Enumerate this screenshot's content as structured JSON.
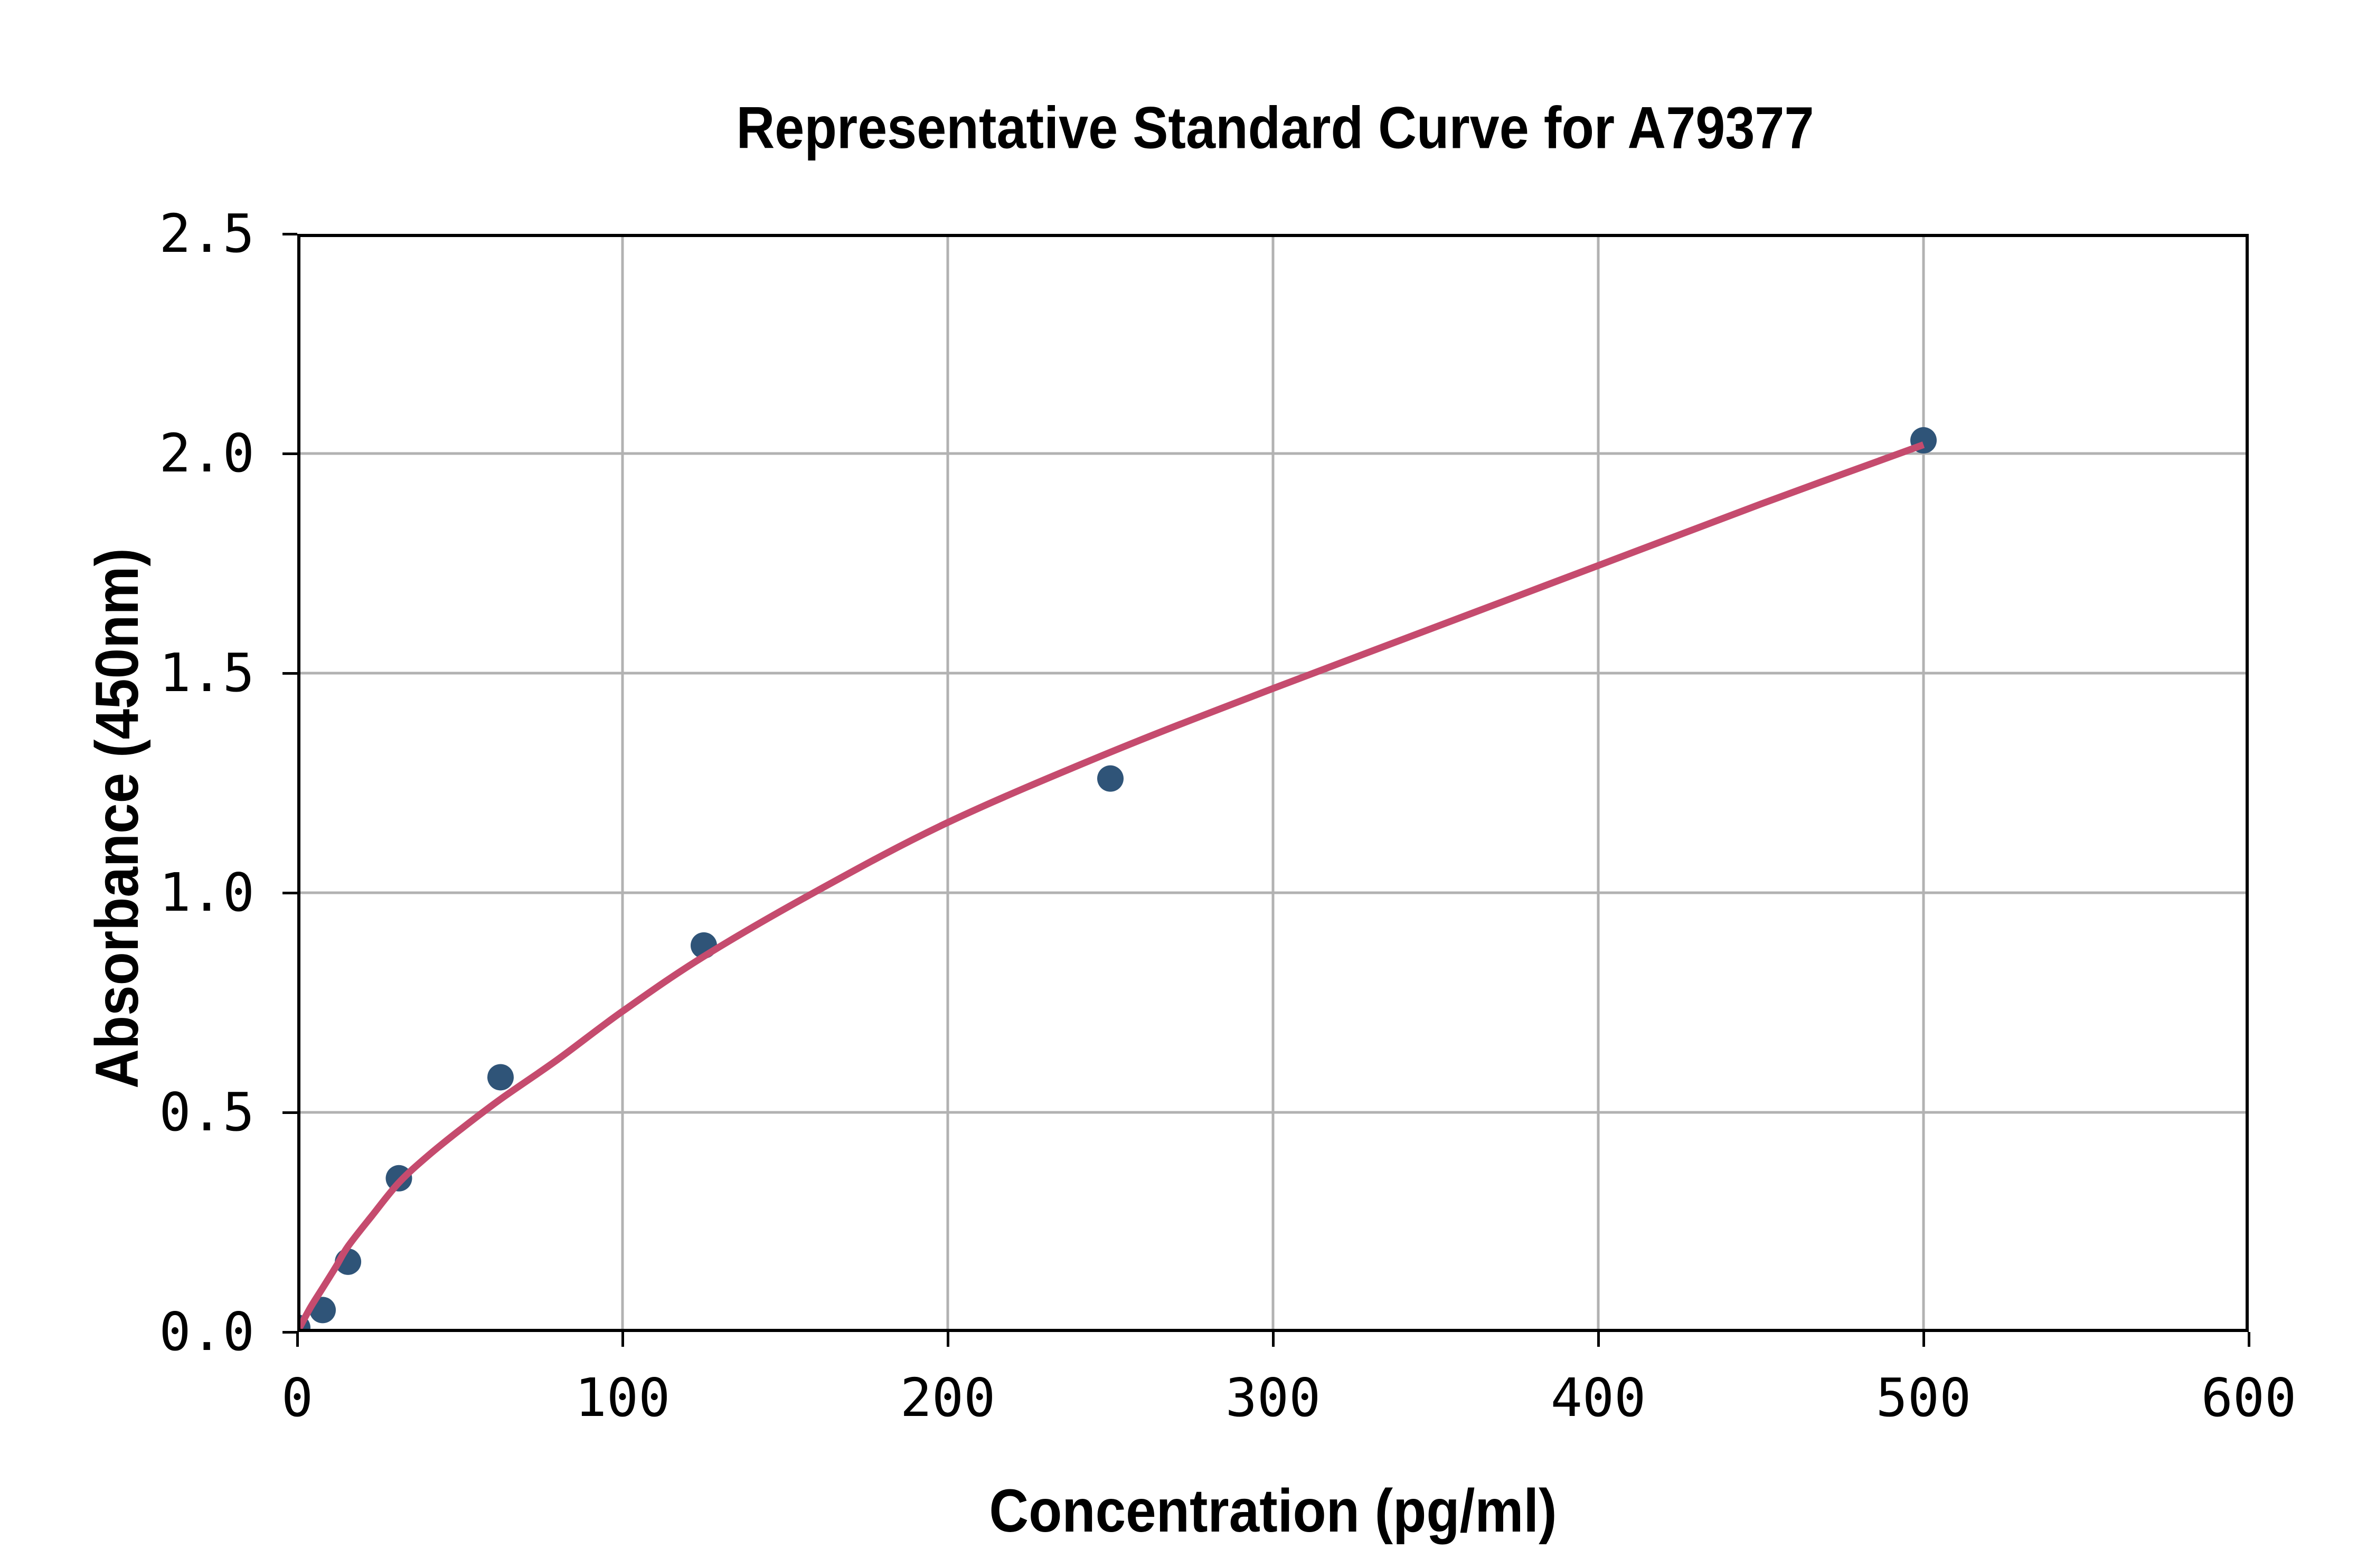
{
  "chart_data": {
    "type": "scatter",
    "title": "Representative Standard Curve for A79377",
    "xlabel": "Concentration (pg/ml)",
    "ylabel": "Absorbance (450nm)",
    "xlim": [
      0,
      600
    ],
    "ylim": [
      0,
      2.5
    ],
    "x_ticks": [
      0,
      100,
      200,
      300,
      400,
      500,
      600
    ],
    "x_tick_labels": [
      "0",
      "100",
      "200",
      "300",
      "400",
      "500",
      "600"
    ],
    "y_ticks": [
      0,
      0.5,
      1.0,
      1.5,
      2.0,
      2.5
    ],
    "y_tick_labels": [
      "0.0",
      "0.5",
      "1.0",
      "1.5",
      "2.0",
      "2.5"
    ],
    "grid": true,
    "legend": "none",
    "points": [
      {
        "x": 0,
        "y": 0.01
      },
      {
        "x": 7.8,
        "y": 0.05
      },
      {
        "x": 15.6,
        "y": 0.16
      },
      {
        "x": 31.25,
        "y": 0.35
      },
      {
        "x": 62.5,
        "y": 0.58
      },
      {
        "x": 125,
        "y": 0.88
      },
      {
        "x": 250,
        "y": 1.26
      },
      {
        "x": 500,
        "y": 2.03
      }
    ],
    "fit_curve": [
      [
        0,
        0
      ],
      [
        4,
        0.055
      ],
      [
        7.8,
        0.1
      ],
      [
        12,
        0.15
      ],
      [
        15.6,
        0.195
      ],
      [
        23,
        0.265
      ],
      [
        31.25,
        0.34
      ],
      [
        40,
        0.4
      ],
      [
        50,
        0.46
      ],
      [
        62.5,
        0.53
      ],
      [
        80,
        0.62
      ],
      [
        100,
        0.73
      ],
      [
        125,
        0.855
      ],
      [
        160,
        1.005
      ],
      [
        200,
        1.16
      ],
      [
        250,
        1.32
      ],
      [
        300,
        1.465
      ],
      [
        350,
        1.605
      ],
      [
        400,
        1.745
      ],
      [
        450,
        1.885
      ],
      [
        500,
        2.02
      ]
    ],
    "colors": {
      "marker": "#2f5478",
      "curve": "#c54b6e",
      "grid": "#b2b2b2",
      "axis": "#000000",
      "text": "#000000",
      "background": "#ffffff"
    }
  }
}
